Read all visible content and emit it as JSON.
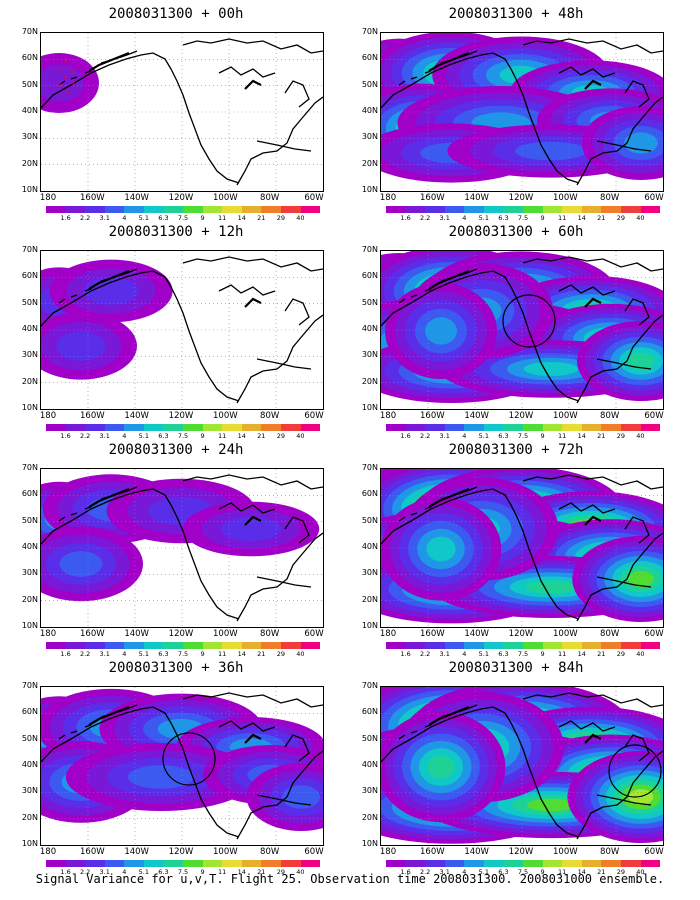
{
  "footer": "Signal Variance for u,v,T. Flight 25. Observation time 2008031300. 2008031000 ensemble.",
  "y_ticks": [
    "70N",
    "60N",
    "50N",
    "40N",
    "30N",
    "20N",
    "10N"
  ],
  "x_ticks": [
    "180",
    "160W",
    "140W",
    "120W",
    "100W",
    "80W",
    "60W"
  ],
  "colorbar": {
    "labels": [
      "1.6",
      "2.2",
      "3.1",
      "4",
      "5.1",
      "6.3",
      "7.5",
      "9",
      "11",
      "14",
      "21",
      "29",
      "40"
    ],
    "colors": [
      "#a000c8",
      "#7a18d8",
      "#5a2de8",
      "#3c5af0",
      "#1f96e6",
      "#10c8c8",
      "#1ed296",
      "#50dc32",
      "#a0e632",
      "#e6dc32",
      "#e6af2d",
      "#f07d28",
      "#f03c3c",
      "#f00082"
    ]
  },
  "panels": [
    {
      "title": "2008031300 + 00h",
      "level": 0,
      "circle": false
    },
    {
      "title": "2008031300 + 48h",
      "level": 4,
      "circle": false
    },
    {
      "title": "2008031300 + 12h",
      "level": 1,
      "circle": false
    },
    {
      "title": "2008031300 + 60h",
      "level": 5,
      "circle": true
    },
    {
      "title": "2008031300 + 24h",
      "level": 2,
      "circle": false
    },
    {
      "title": "2008031300 + 72h",
      "level": 6,
      "circle": false
    },
    {
      "title": "2008031300 + 36h",
      "level": 3,
      "circle": true
    },
    {
      "title": "2008031300 + 84h",
      "level": 7,
      "circle": true
    }
  ]
}
